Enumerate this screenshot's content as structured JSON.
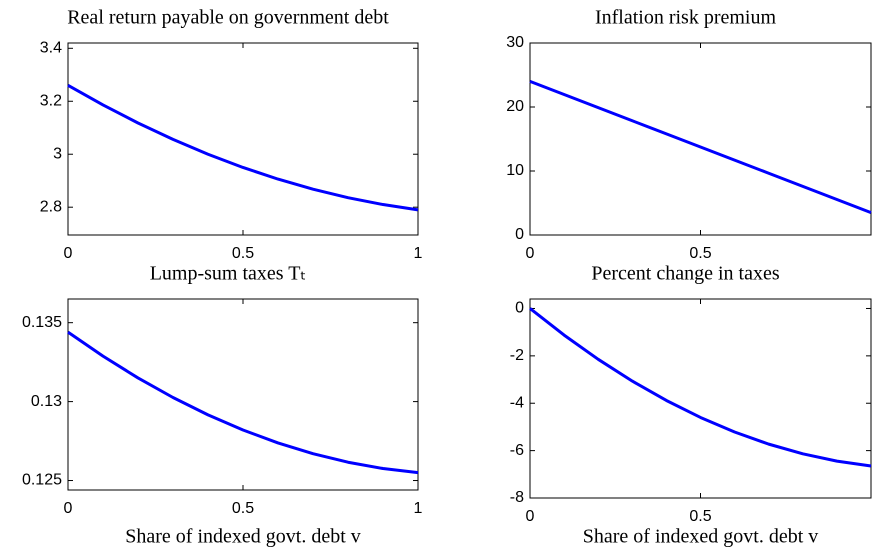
{
  "chart_data": [
    {
      "type": "line",
      "title": "Real return payable on government debt",
      "x": [
        0,
        0.1,
        0.2,
        0.3,
        0.4,
        0.5,
        0.6,
        0.7,
        0.8,
        0.9,
        1
      ],
      "values": [
        3.26,
        3.186,
        3.118,
        3.056,
        3.0,
        2.95,
        2.906,
        2.868,
        2.836,
        2.81,
        2.79
      ],
      "color": "#0000ff",
      "xlim": [
        0,
        1
      ],
      "xticks": [
        0,
        0.5,
        1
      ],
      "ylim": [
        2.695,
        3.42
      ],
      "yticks": [
        2.8,
        3,
        3.2,
        3.4
      ]
    },
    {
      "type": "line",
      "title": "Inflation risk premium",
      "x": [
        0,
        0.1,
        0.2,
        0.3,
        0.4,
        0.5,
        0.6,
        0.7,
        0.8,
        0.9,
        1
      ],
      "values": [
        24,
        21.95,
        19.9,
        17.85,
        15.8,
        13.75,
        11.7,
        9.65,
        7.6,
        5.55,
        3.5
      ],
      "color": "#0000ff",
      "xlim": [
        0,
        1
      ],
      "xticks": [
        0,
        0.5
      ],
      "ylim": [
        0,
        30
      ],
      "yticks": [
        0,
        10,
        20,
        30
      ]
    },
    {
      "type": "line",
      "title": "Lump-sum taxes Tₜ",
      "xlabel": "Share of indexed govt. debt v",
      "x": [
        0,
        0.1,
        0.2,
        0.3,
        0.4,
        0.5,
        0.6,
        0.7,
        0.8,
        0.9,
        1
      ],
      "values": [
        0.1344,
        0.13288,
        0.1315,
        0.13026,
        0.12916,
        0.1282,
        0.12738,
        0.1267,
        0.12616,
        0.12576,
        0.1255
      ],
      "color": "#0000ff",
      "xlim": [
        0,
        1
      ],
      "xticks": [
        0,
        0.5,
        1
      ],
      "ylim": [
        0.1244,
        0.1365
      ],
      "yticks": [
        0.125,
        0.13,
        0.135
      ]
    },
    {
      "type": "line",
      "title": "Percent change in taxes",
      "xlabel": "Share of indexed govt. debt v",
      "x": [
        0,
        0.1,
        0.2,
        0.3,
        0.4,
        0.5,
        0.6,
        0.7,
        0.8,
        0.9,
        1
      ],
      "values": [
        0,
        -1.124,
        -2.146,
        -3.066,
        -3.884,
        -4.6,
        -5.214,
        -5.726,
        -6.136,
        -6.444,
        -6.65
      ],
      "color": "#0000ff",
      "xlim": [
        0,
        1
      ],
      "xticks": [
        0,
        0.5
      ],
      "ylim": [
        -8,
        0.4
      ],
      "yticks": [
        0,
        -2,
        -4,
        -6,
        -8
      ]
    }
  ]
}
